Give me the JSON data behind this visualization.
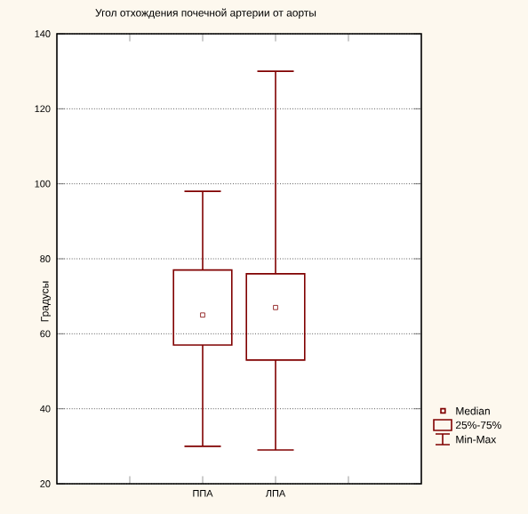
{
  "chart_data": {
    "type": "box",
    "title": "Угол отхождения почечной артерии от аорты",
    "ylabel": "Градусы",
    "categories": [
      "ППА",
      "ЛПА"
    ],
    "series": [
      {
        "color": "#800000",
        "boxes": [
          {
            "low": 30,
            "q1": 57,
            "median": 65,
            "q3": 77,
            "high": 98
          },
          {
            "low": 29,
            "q1": 53,
            "median": 67,
            "q3": 76,
            "high": 130
          }
        ]
      }
    ],
    "ylim": [
      20,
      140
    ],
    "yticks": [
      20,
      40,
      60,
      80,
      100,
      120,
      140
    ],
    "grid": "y",
    "marker": "square",
    "annotations": [
      "Median",
      "25%-75%",
      "Min-Max"
    ]
  }
}
